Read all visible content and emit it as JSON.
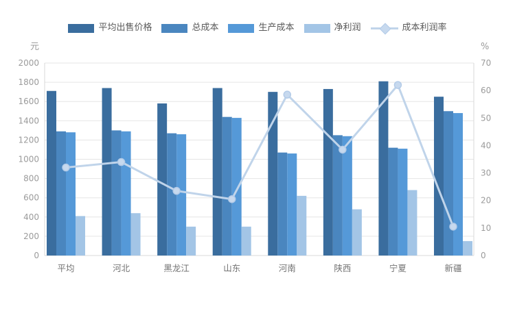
{
  "chart_data": {
    "type": "bar",
    "title": "",
    "categories": [
      "平均",
      "河北",
      "黑龙江",
      "山东",
      "河南",
      "陕西",
      "宁夏",
      "新疆"
    ],
    "series": [
      {
        "key": "avg-sell-price",
        "name": "平均出售价格",
        "type": "bar",
        "color": "#3a6d9e",
        "values": [
          1710,
          1740,
          1580,
          1740,
          1700,
          1730,
          1810,
          1650
        ]
      },
      {
        "key": "total-cost",
        "name": "总成本",
        "type": "bar",
        "color": "#4a86bf",
        "values": [
          1290,
          1300,
          1270,
          1440,
          1070,
          1250,
          1120,
          1500
        ]
      },
      {
        "key": "production-cost",
        "name": "生产成本",
        "type": "bar",
        "color": "#5599d8",
        "values": [
          1280,
          1290,
          1260,
          1430,
          1060,
          1240,
          1110,
          1480
        ]
      },
      {
        "key": "net-profit",
        "name": "净利润",
        "type": "bar",
        "color": "#a3c5e6",
        "values": [
          410,
          440,
          300,
          300,
          620,
          480,
          680,
          150
        ]
      },
      {
        "key": "cost-profit-rate",
        "name": "成本利润率",
        "type": "line",
        "color": "#c0d4ea",
        "marker_fill": "#c7d9ee",
        "marker_stroke": "#b3cbe8",
        "axis": "right",
        "values": [
          32,
          34,
          23.5,
          20.5,
          58.5,
          38.5,
          62,
          10.5
        ]
      }
    ],
    "left_axis": {
      "title": "元",
      "min": 0,
      "max": 2000,
      "step": 200
    },
    "right_axis": {
      "title": "%",
      "min": 0,
      "max": 70,
      "step": 10
    },
    "grid": true,
    "legend_position": "top",
    "style": {
      "grid_color": "#e5e5e5",
      "axis_color": "#d8d8d8",
      "tick_color": "#9b9b9b",
      "xlabel_color": "#737373",
      "legend_text_color": "#595959",
      "background": "#ffffff"
    }
  }
}
